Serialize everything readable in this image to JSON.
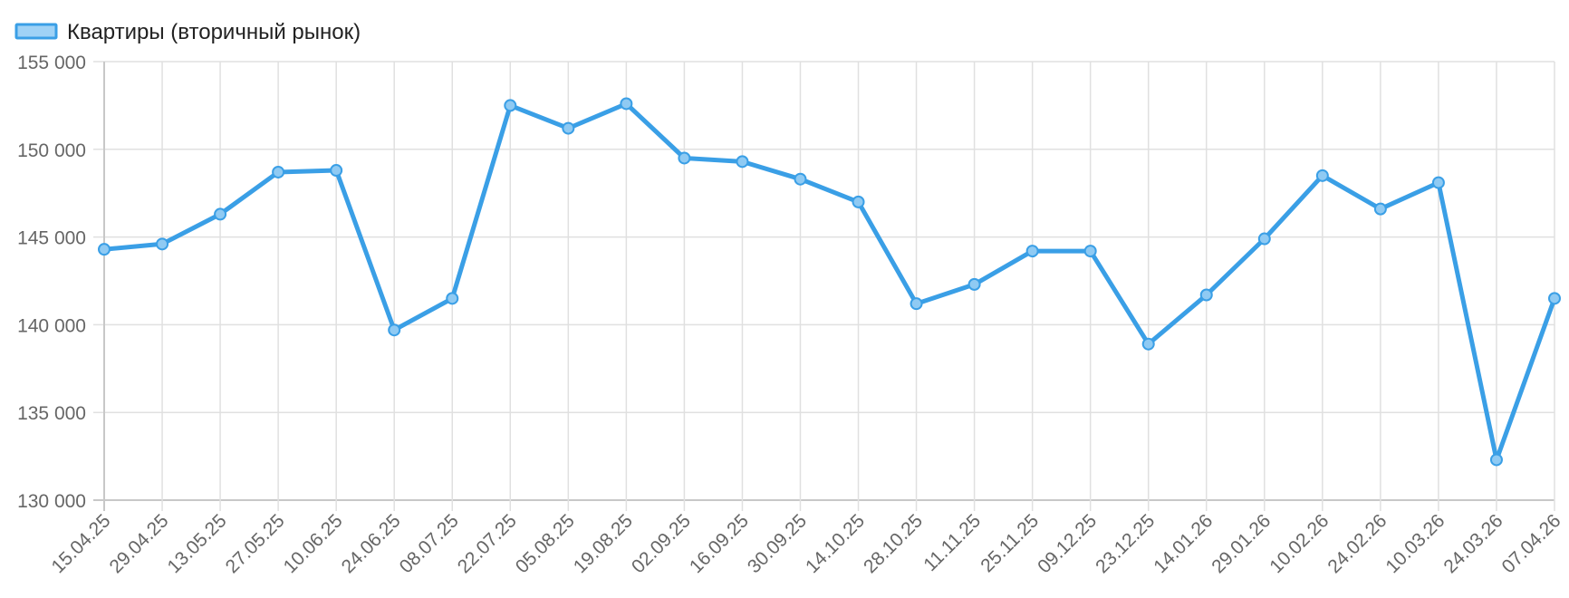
{
  "chart_data": {
    "type": "line",
    "legend": {
      "position": "top-left"
    },
    "grid": true,
    "x_ticks": [
      "15.04.25",
      "29.04.25",
      "13.05.25",
      "27.05.25",
      "10.06.25",
      "24.06.25",
      "08.07.25",
      "22.07.25",
      "05.08.25",
      "19.08.25",
      "02.09.25",
      "16.09.25",
      "30.09.25",
      "14.10.25",
      "28.10.25",
      "11.11.25",
      "25.11.25",
      "09.12.25",
      "23.12.25",
      "14.01.26",
      "29.01.26",
      "10.02.26",
      "24.02.26",
      "10.03.26",
      "24.03.26",
      "07.04.26"
    ],
    "ylim": [
      130000,
      155000
    ],
    "y_ticks": [
      130000,
      135000,
      140000,
      145000,
      150000,
      155000
    ],
    "y_tick_labels": [
      "130 000",
      "135 000",
      "140 000",
      "145 000",
      "150 000",
      "155 000"
    ],
    "series": [
      {
        "name": "Квартиры (вторичный рынок)",
        "color": "#3a9fe6",
        "values": [
          144300,
          144600,
          146300,
          148700,
          148800,
          139700,
          141500,
          152500,
          151200,
          152600,
          149500,
          149300,
          148300,
          147000,
          141200,
          142300,
          144200,
          144200,
          138900,
          141700,
          144900,
          148500,
          146600,
          148100,
          132300,
          141500
        ]
      }
    ]
  }
}
